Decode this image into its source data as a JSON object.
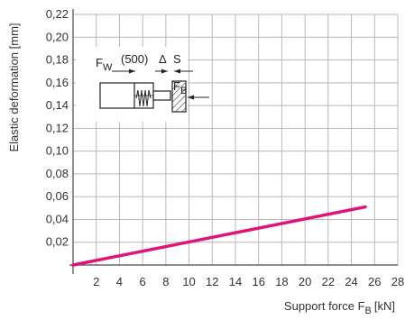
{
  "chart_data": {
    "type": "line",
    "title": "",
    "xlabel": "Support force F",
    "xlabel_sub": "B",
    "xlabel_unit": "[kN]",
    "ylabel": "Elastic deformation [mm]",
    "xlim": [
      0,
      28
    ],
    "ylim": [
      0,
      0.22
    ],
    "x_ticks": [
      2,
      4,
      6,
      8,
      10,
      12,
      14,
      16,
      18,
      20,
      22,
      24,
      26,
      28
    ],
    "x_tick_labels": [
      "2",
      "4",
      "6",
      "8",
      "10",
      "12",
      "14",
      "16",
      "18",
      "20",
      "22",
      "24",
      "26",
      "28"
    ],
    "y_ticks": [
      0.02,
      0.04,
      0.06,
      0.08,
      0.1,
      0.12,
      0.14,
      0.16,
      0.18,
      0.2,
      0.22
    ],
    "y_tick_labels": [
      "0,02",
      "0,04",
      "0,06",
      "0,08",
      "0,10",
      "0,12",
      "0,14",
      "0,16",
      "0,18",
      "0,20",
      "0,22"
    ],
    "grid": true,
    "series": [
      {
        "color": "#e0137a",
        "x": [
          0,
          25.2
        ],
        "y": [
          0,
          0.051
        ]
      }
    ],
    "inset": {
      "fw_label": "F",
      "fw_sub": "W",
      "fw_value": "(500)",
      "delta_symbol": "Δ",
      "delta_label": "S",
      "fb_label": "F",
      "fb_sub": "B"
    }
  }
}
